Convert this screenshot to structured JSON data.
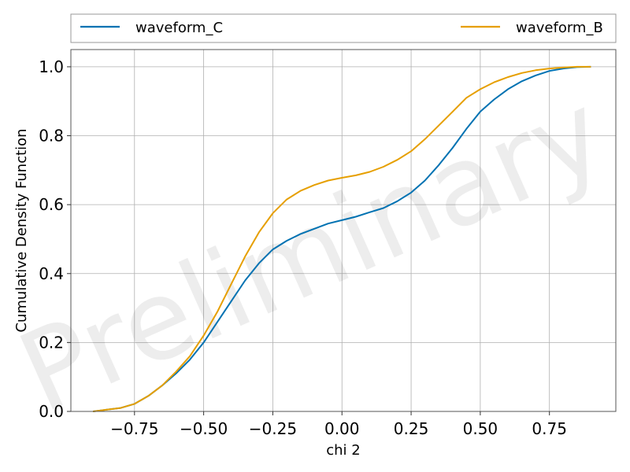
{
  "chart_data": {
    "type": "line",
    "title": "",
    "xlabel": "chi 2",
    "ylabel": "Cumulative Density Function",
    "xlim": [
      -0.98,
      0.99
    ],
    "ylim": [
      0.0,
      1.05
    ],
    "x_ticks": [
      -0.75,
      -0.5,
      -0.25,
      0.0,
      0.25,
      0.5,
      0.75
    ],
    "x_tick_labels": [
      "−0.75",
      "−0.50",
      "−0.25",
      "0.00",
      "0.25",
      "0.50",
      "0.75"
    ],
    "y_ticks": [
      0.0,
      0.2,
      0.4,
      0.6,
      0.8,
      1.0
    ],
    "y_tick_labels": [
      "0.0",
      "0.2",
      "0.4",
      "0.6",
      "0.8",
      "1.0"
    ],
    "grid": true,
    "legend_position": "top, above plot, two columns",
    "watermark": "Preliminary",
    "series": [
      {
        "name": "waveform_C",
        "color": "#0072b2",
        "x": [
          -0.9,
          -0.85,
          -0.8,
          -0.75,
          -0.7,
          -0.65,
          -0.6,
          -0.55,
          -0.5,
          -0.45,
          -0.4,
          -0.35,
          -0.3,
          -0.25,
          -0.2,
          -0.15,
          -0.1,
          -0.05,
          0.0,
          0.05,
          0.1,
          0.15,
          0.2,
          0.25,
          0.3,
          0.35,
          0.4,
          0.45,
          0.5,
          0.55,
          0.6,
          0.65,
          0.7,
          0.75,
          0.8,
          0.85,
          0.9
        ],
        "y": [
          0.0,
          0.005,
          0.01,
          0.022,
          0.045,
          0.075,
          0.11,
          0.15,
          0.2,
          0.26,
          0.32,
          0.38,
          0.43,
          0.47,
          0.495,
          0.515,
          0.53,
          0.545,
          0.555,
          0.565,
          0.578,
          0.59,
          0.61,
          0.635,
          0.67,
          0.715,
          0.765,
          0.82,
          0.87,
          0.905,
          0.935,
          0.958,
          0.975,
          0.988,
          0.995,
          0.999,
          1.0
        ]
      },
      {
        "name": "waveform_B",
        "color": "#e69f00",
        "x": [
          -0.9,
          -0.85,
          -0.8,
          -0.75,
          -0.7,
          -0.65,
          -0.6,
          -0.55,
          -0.5,
          -0.45,
          -0.4,
          -0.35,
          -0.3,
          -0.25,
          -0.2,
          -0.15,
          -0.1,
          -0.05,
          0.0,
          0.05,
          0.1,
          0.15,
          0.2,
          0.25,
          0.3,
          0.35,
          0.4,
          0.45,
          0.5,
          0.55,
          0.6,
          0.65,
          0.7,
          0.75,
          0.8,
          0.85,
          0.9
        ],
        "y": [
          0.0,
          0.005,
          0.01,
          0.022,
          0.045,
          0.075,
          0.115,
          0.16,
          0.22,
          0.29,
          0.37,
          0.45,
          0.52,
          0.575,
          0.615,
          0.64,
          0.657,
          0.67,
          0.678,
          0.685,
          0.695,
          0.71,
          0.73,
          0.755,
          0.79,
          0.83,
          0.87,
          0.91,
          0.935,
          0.955,
          0.97,
          0.982,
          0.99,
          0.995,
          0.998,
          1.0,
          1.0
        ]
      }
    ]
  }
}
